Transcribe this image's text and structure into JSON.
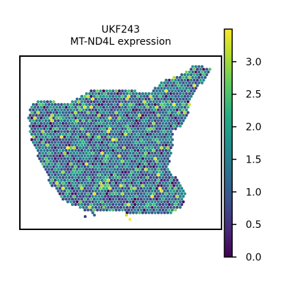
{
  "chart_data": {
    "type": "heatmap",
    "title": "UKF243",
    "subtitle": "MT-ND4L expression",
    "xlabel": "",
    "ylabel": "",
    "colorbar": {
      "colormap": "viridis",
      "range": [
        0,
        3.5
      ],
      "ticks": [
        0.0,
        0.5,
        1.0,
        1.5,
        2.0,
        2.5,
        3.0
      ],
      "tick_labels": [
        "0.0",
        "0.5",
        "1.0",
        "1.5",
        "2.0",
        "2.5",
        "3.0"
      ]
    },
    "colors": {
      "low": "#440154",
      "mid": "#21918c",
      "high": "#fde725"
    },
    "spots": {
      "layout": "hexagonal spatial spots forming a tissue section",
      "typical_value": 1.0,
      "value_distribution": "mostly 0.5-2.0 (blue/teal), scattered high values up to about 3.5 (green/yellow), some zeros (dark purple)"
    }
  }
}
